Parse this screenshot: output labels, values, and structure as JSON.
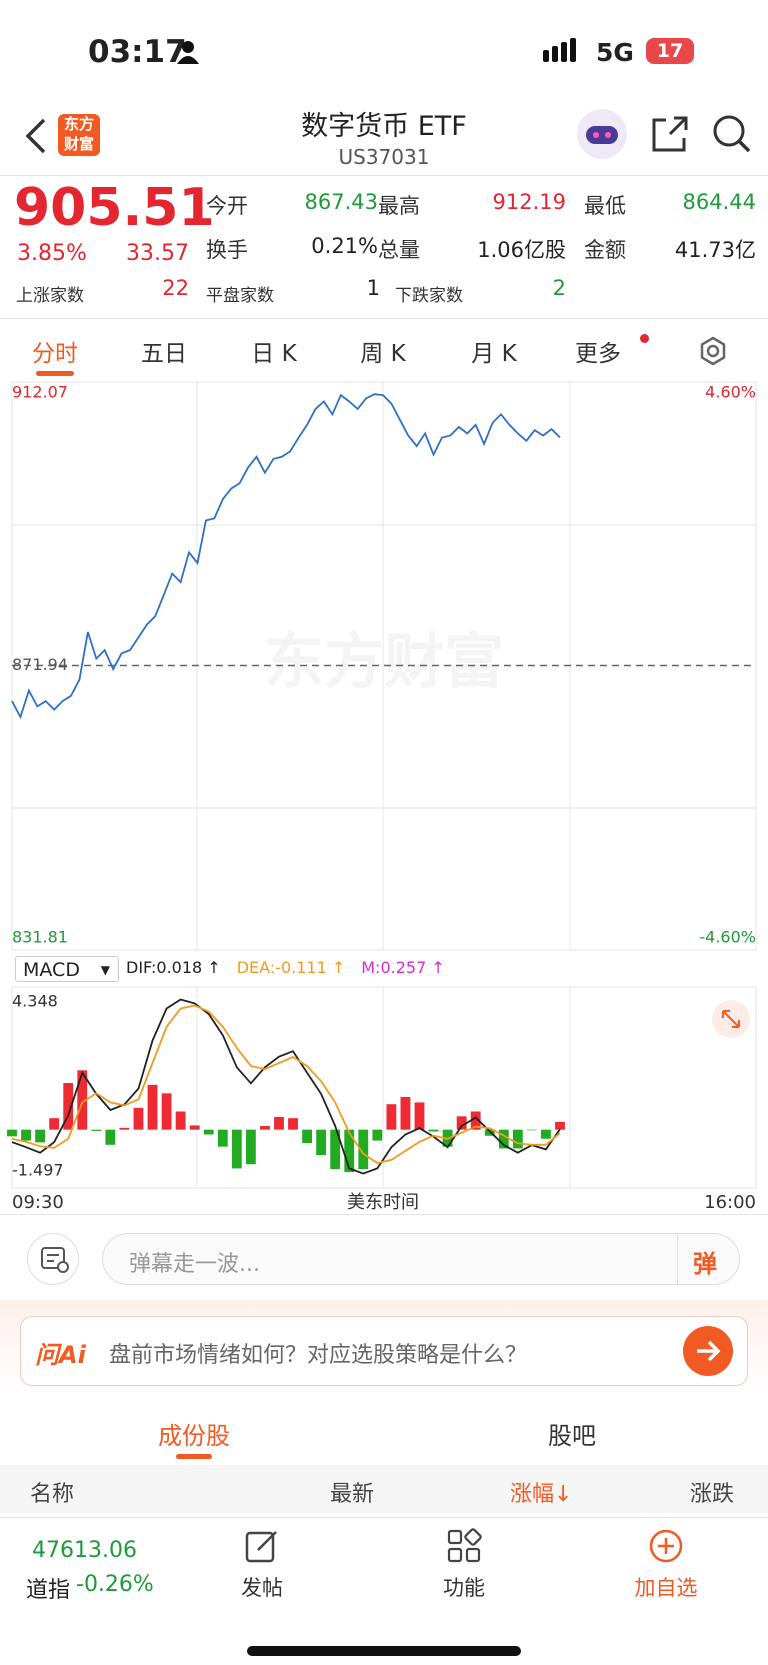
{
  "status_bar": {
    "time": "03:17",
    "network": "5G",
    "battery": "17"
  },
  "header": {
    "logo_top": "东方",
    "logo_bottom": "财富",
    "title": "数字货币 ETF",
    "code": "US37031"
  },
  "quote": {
    "price": "905.51",
    "change_pct": "3.85%",
    "change": "33.57",
    "fields": [
      {
        "label": "今开",
        "value": "867.43",
        "color": "#1f9a3a"
      },
      {
        "label": "最高",
        "value": "912.19",
        "color": "#e3262f"
      },
      {
        "label": "最低",
        "value": "864.44",
        "color": "#1f9a3a"
      },
      {
        "label": "换手",
        "value": "0.21%",
        "color": "#222222"
      },
      {
        "label": "总量",
        "value": "1.06亿股",
        "color": "#222222"
      },
      {
        "label": "金额",
        "value": "41.73亿",
        "color": "#222222"
      }
    ],
    "breadth": [
      {
        "label": "上涨家数",
        "value": "22",
        "color": "#e3262f"
      },
      {
        "label": "平盘家数",
        "value": "1",
        "color": "#222222"
      },
      {
        "label": "下跌家数",
        "value": "2",
        "color": "#1f9a3a"
      }
    ]
  },
  "tabs": [
    "分时",
    "五日",
    "日 K",
    "周 K",
    "月 K",
    "更多"
  ],
  "price_chart": {
    "type": "line",
    "watermark": "东方财富",
    "color": "#2f6fc4",
    "ylim": [
      831.81,
      912.07
    ],
    "yticks": [
      831.81,
      871.94,
      912.07
    ],
    "reference": 871.94,
    "y2lim": [
      -4.6,
      4.6
    ],
    "y2ticks": [
      {
        "value": -4.6,
        "label": "-4.60%"
      },
      {
        "value": 4.6,
        "label": "4.60%"
      }
    ],
    "values": [
      866.7,
      864.35,
      868.26,
      865.92,
      866.7,
      865.45,
      866.7,
      867.48,
      869.83,
      876.87,
      872.96,
      874.21,
      871.39,
      873.74,
      874.21,
      876.09,
      877.96,
      879.22,
      882.34,
      885.47,
      884.22,
      888.6,
      887.04,
      893.3,
      893.61,
      896.43,
      897.99,
      898.77,
      901.12,
      902.68,
      900.34,
      902.37,
      902.68,
      903.47,
      905.5,
      907.38,
      909.72,
      910.82,
      908.94,
      911.76,
      910.82,
      909.72,
      911.29,
      911.9,
      911.76,
      910.51,
      908.16,
      905.81,
      904.25,
      906.12,
      903.0,
      905.5,
      905.81,
      907.06,
      906.12,
      907.38,
      904.56,
      907.69,
      908.94,
      907.38,
      906.12,
      905.03,
      906.59,
      905.81,
      906.75,
      905.51
    ]
  },
  "macd_chart": {
    "type": "macd",
    "indicator": "MACD",
    "legend": [
      {
        "text": "DIF:0.018 ↑",
        "color": "#222222"
      },
      {
        "text": "DEA:-0.111 ↑",
        "color": "#f39a1e"
      },
      {
        "text": "M:0.257 ↑",
        "color": "#d62ad6"
      }
    ],
    "ylim": [
      -1.497,
      4.348
    ],
    "yticks": [
      -1.497,
      4.348
    ],
    "xticks": [
      "09:30",
      "16:00"
    ],
    "xlabel": "美东时间",
    "series": [
      {
        "color": "#222222",
        "values": [
          -0.41,
          -0.58,
          -0.76,
          -0.41,
          0.47,
          1.88,
          1.18,
          0.65,
          0.83,
          1.36,
          2.94,
          4.0,
          4.3,
          4.17,
          3.82,
          3.12,
          2.06,
          1.53,
          2.06,
          2.41,
          2.59,
          1.88,
          1.18,
          0.12,
          -1.28,
          -1.45,
          -1.28,
          -0.58,
          -0.16,
          0.05,
          -0.23,
          -0.58,
          0.12,
          0.4,
          -0.05,
          -0.51,
          -0.76,
          -0.51,
          -0.65,
          0.018
        ]
      },
      {
        "color": "#f39a1e",
        "values": [
          -0.3,
          -0.4,
          -0.55,
          -0.6,
          -0.3,
          0.9,
          1.2,
          0.9,
          0.8,
          1.0,
          2.2,
          3.4,
          4.0,
          4.1,
          3.9,
          3.4,
          2.7,
          2.1,
          2.0,
          2.2,
          2.4,
          2.1,
          1.6,
          0.9,
          -0.1,
          -0.8,
          -1.1,
          -1.0,
          -0.7,
          -0.4,
          -0.2,
          -0.3,
          -0.1,
          0.1,
          0.05,
          -0.2,
          -0.45,
          -0.5,
          -0.5,
          -0.111
        ]
      },
      {
        "color_up": "#ee2a33",
        "color_down": "#22aa22",
        "values": [
          -0.22,
          -0.36,
          -0.42,
          0.38,
          1.54,
          1.96,
          -0.04,
          -0.5,
          0.06,
          0.72,
          1.48,
          1.2,
          0.6,
          0.14,
          -0.16,
          -0.56,
          -1.28,
          -1.14,
          0.12,
          0.42,
          0.38,
          -0.44,
          -0.84,
          -1.3,
          -1.4,
          -1.3,
          -0.36,
          0.84,
          1.08,
          0.9,
          -0.06,
          -0.56,
          0.44,
          0.6,
          -0.2,
          -0.62,
          -0.62,
          -0.02,
          -0.3,
          0.257
        ]
      }
    ]
  },
  "comment": {
    "placeholder": "弹幕走一波...",
    "button": "弹"
  },
  "ai_bar": {
    "logo": "问Ai",
    "question": "盘前市场情绪如何？对应选股策略是什么？"
  },
  "section_tabs": [
    "成份股",
    "股吧"
  ],
  "table_header": [
    "名称",
    "最新",
    "涨幅↓",
    "涨跌"
  ],
  "bottom_nav": {
    "index_value": "47613.06",
    "index_name": "道指",
    "index_change": "-0.26%",
    "items": [
      "发帖",
      "功能",
      "加自选"
    ]
  }
}
